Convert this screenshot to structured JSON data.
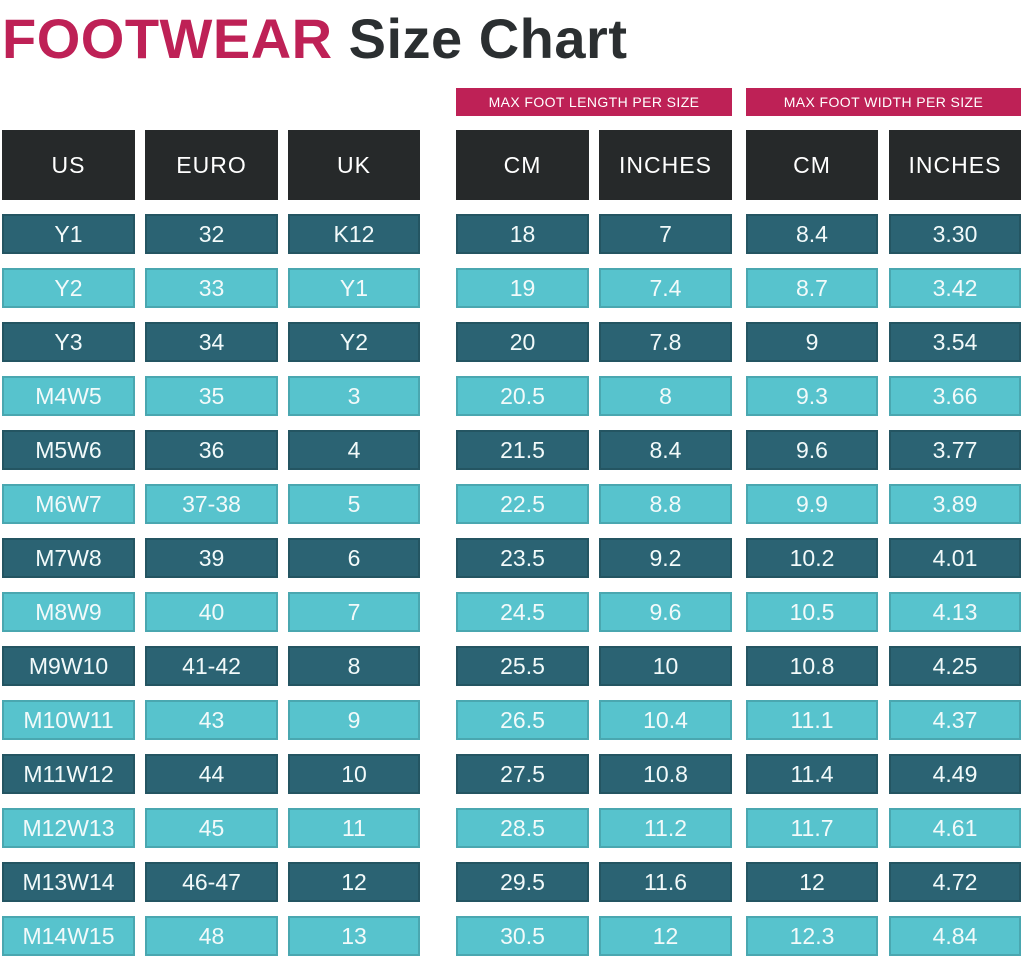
{
  "title": {
    "highlight": "FOOTWEAR",
    "rest": "Size Chart"
  },
  "banners": {
    "length": "MAX FOOT LENGTH PER SIZE",
    "width": "MAX FOOT WIDTH PER SIZE"
  },
  "colors": {
    "accent": "#BE2156",
    "title_dark": "#2B2F31",
    "header_bg": "#26292A",
    "row_dark": "#2B6373",
    "row_light": "#57C3CD"
  },
  "chart_data": {
    "type": "table",
    "title": "FOOTWEAR Size Chart",
    "group_headers": [
      "MAX FOOT LENGTH PER SIZE",
      "MAX FOOT WIDTH PER SIZE"
    ],
    "columns": [
      "US",
      "EURO",
      "UK",
      "CM",
      "INCHES",
      "CM",
      "INCHES"
    ],
    "rows": [
      [
        "Y1",
        "32",
        "K12",
        "18",
        "7",
        "8.4",
        "3.30"
      ],
      [
        "Y2",
        "33",
        "Y1",
        "19",
        "7.4",
        "8.7",
        "3.42"
      ],
      [
        "Y3",
        "34",
        "Y2",
        "20",
        "7.8",
        "9",
        "3.54"
      ],
      [
        "M4W5",
        "35",
        "3",
        "20.5",
        "8",
        "9.3",
        "3.66"
      ],
      [
        "M5W6",
        "36",
        "4",
        "21.5",
        "8.4",
        "9.6",
        "3.77"
      ],
      [
        "M6W7",
        "37-38",
        "5",
        "22.5",
        "8.8",
        "9.9",
        "3.89"
      ],
      [
        "M7W8",
        "39",
        "6",
        "23.5",
        "9.2",
        "10.2",
        "4.01"
      ],
      [
        "M8W9",
        "40",
        "7",
        "24.5",
        "9.6",
        "10.5",
        "4.13"
      ],
      [
        "M9W10",
        "41-42",
        "8",
        "25.5",
        "10",
        "10.8",
        "4.25"
      ],
      [
        "M10W11",
        "43",
        "9",
        "26.5",
        "10.4",
        "11.1",
        "4.37"
      ],
      [
        "M11W12",
        "44",
        "10",
        "27.5",
        "10.8",
        "11.4",
        "4.49"
      ],
      [
        "M12W13",
        "45",
        "11",
        "28.5",
        "11.2",
        "11.7",
        "4.61"
      ],
      [
        "M13W14",
        "46-47",
        "12",
        "29.5",
        "11.6",
        "12",
        "4.72"
      ],
      [
        "M14W15",
        "48",
        "13",
        "30.5",
        "12",
        "12.3",
        "4.84"
      ]
    ]
  }
}
